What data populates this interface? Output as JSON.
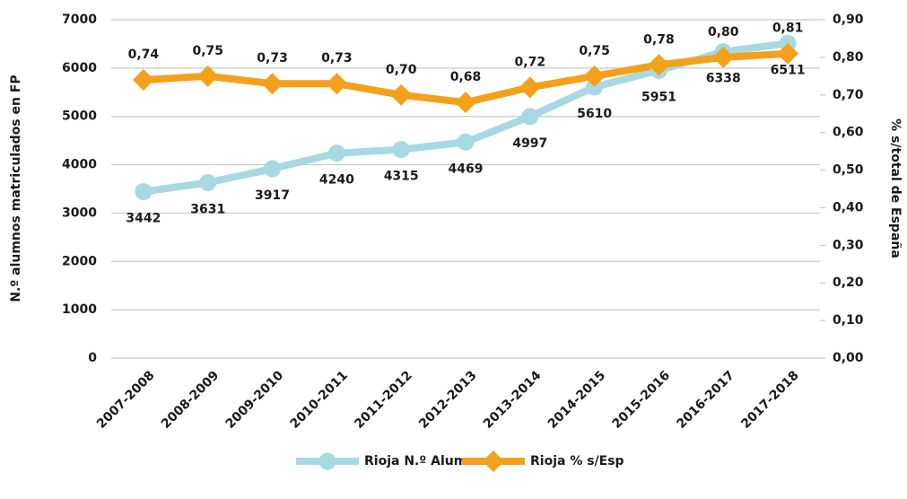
{
  "chart_data": {
    "type": "line",
    "y_label": "N.º alumnos matriculados en FP",
    "y2_label": "% s/total de España",
    "categories": [
      "2007-2008",
      "2008-2009",
      "2009-2010",
      "2010-2011",
      "2011-2012",
      "2012-2013",
      "2013-2014",
      "2014-2015",
      "2015-2016",
      "2016-2017",
      "2017-2018"
    ],
    "series": [
      {
        "name": "Rioja N.º Alumnos",
        "color": "#a6d9e1",
        "marker": "circle",
        "values": [
          3442,
          3631,
          3917,
          4240,
          4315,
          4469,
          4997,
          5610,
          5951,
          6338,
          6511
        ]
      },
      {
        "name": "Rioja % s/Esp",
        "color": "#f5a01a",
        "marker": "diamond",
        "axis": "y2",
        "values": [
          0.74,
          0.75,
          0.73,
          0.73,
          0.7,
          0.68,
          0.72,
          0.75,
          0.78,
          0.8,
          0.81
        ],
        "value_labels": [
          "0,74",
          "0,75",
          "0,73",
          "0,73",
          "0,70",
          "0,68",
          "0,72",
          "0,75",
          "0,78",
          "0,80",
          "0,81"
        ]
      }
    ],
    "ylim": [
      0,
      7000
    ],
    "yticks": [
      0,
      1000,
      2000,
      3000,
      4000,
      5000,
      6000,
      7000
    ],
    "y2lim": [
      0,
      0.9
    ],
    "y2ticks": [
      {
        "value": 0,
        "label": "0,00"
      },
      {
        "value": 0.1,
        "label": "0,10"
      },
      {
        "value": 0.2,
        "label": "0,20"
      },
      {
        "value": 0.3,
        "label": "0,30"
      },
      {
        "value": 0.4,
        "label": "0,40"
      },
      {
        "value": 0.5,
        "label": "0,50"
      },
      {
        "value": 0.6,
        "label": "0,60"
      },
      {
        "value": 0.7,
        "label": "0,70"
      },
      {
        "value": 0.8,
        "label": "0,80"
      },
      {
        "value": 0.9,
        "label": "0,90"
      }
    ],
    "grid": true,
    "legend": "bottom"
  }
}
